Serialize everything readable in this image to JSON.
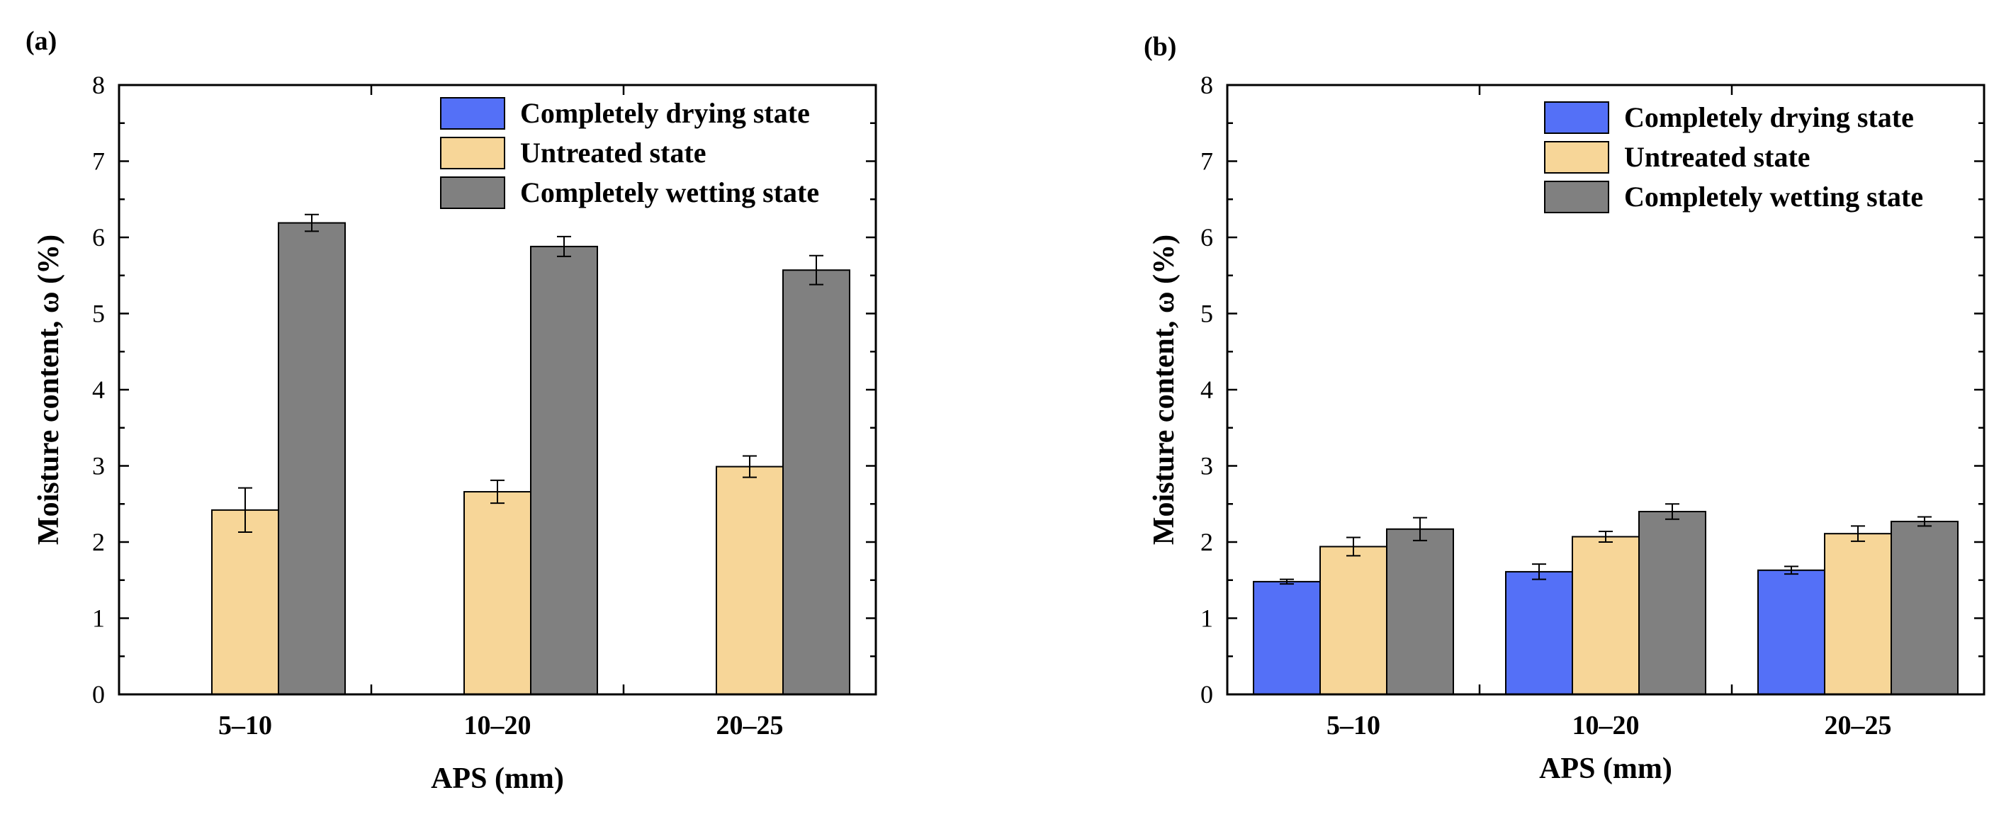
{
  "chart_data": [
    {
      "panel_label": "(a)",
      "type": "bar",
      "xlabel": "APS (mm)",
      "ylabel": "Moisture content, ω (%)",
      "ylim": [
        0,
        8
      ],
      "yticks": [
        "0",
        "1",
        "2",
        "3",
        "4",
        "5",
        "6",
        "7",
        "8"
      ],
      "categories": [
        "5–10",
        "10–20",
        "20–25"
      ],
      "legend_position": "top-right",
      "series": [
        {
          "name": "Completely drying state",
          "color": "#5470F7",
          "values": [
            0,
            0,
            0
          ],
          "errors": [
            0,
            0,
            0
          ]
        },
        {
          "name": "Untreated state",
          "color": "#F7D698",
          "values": [
            2.42,
            2.66,
            2.99
          ],
          "errors": [
            0.29,
            0.15,
            0.14
          ]
        },
        {
          "name": "Completely wetting state",
          "color": "#808080",
          "values": [
            6.19,
            5.88,
            5.57
          ],
          "errors": [
            0.11,
            0.13,
            0.19
          ]
        }
      ]
    },
    {
      "panel_label": "(b)",
      "type": "bar",
      "xlabel": "APS (mm)",
      "ylabel": "Moisture content, ω (%)",
      "ylim": [
        0,
        8
      ],
      "yticks": [
        "0",
        "1",
        "2",
        "3",
        "4",
        "5",
        "6",
        "7",
        "8"
      ],
      "categories": [
        "5–10",
        "10–20",
        "20–25"
      ],
      "legend_position": "top-right",
      "series": [
        {
          "name": "Completely drying state",
          "color": "#5470F7",
          "values": [
            1.48,
            1.61,
            1.63
          ],
          "errors": [
            0.03,
            0.1,
            0.05
          ]
        },
        {
          "name": "Untreated state",
          "color": "#F7D698",
          "values": [
            1.94,
            2.07,
            2.11
          ],
          "errors": [
            0.12,
            0.07,
            0.1
          ]
        },
        {
          "name": "Completely wetting state",
          "color": "#808080",
          "values": [
            2.17,
            2.4,
            2.27
          ],
          "errors": [
            0.15,
            0.1,
            0.06
          ]
        }
      ]
    }
  ]
}
